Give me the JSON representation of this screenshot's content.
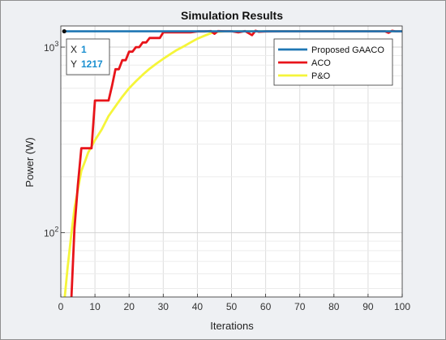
{
  "chart_data": {
    "type": "line",
    "title": "Simulation Results",
    "xlabel": "Iterations",
    "ylabel": "Power (W)",
    "xlim": [
      0,
      100
    ],
    "ylim": [
      45,
      1300
    ],
    "yscale": "log",
    "grid": true,
    "legend_position": "top-right",
    "x_ticks": [
      0,
      10,
      20,
      30,
      40,
      50,
      60,
      70,
      80,
      90,
      100
    ],
    "y_ticks": [
      {
        "value": 100,
        "base": "10",
        "exponent": "2"
      },
      {
        "value": 1000,
        "base": "10",
        "exponent": "3"
      }
    ],
    "series": [
      {
        "name": "Proposed GAACO",
        "color": "#1f77b4",
        "x": [
          1,
          2,
          5,
          10,
          20,
          30,
          40,
          50,
          60,
          70,
          80,
          90,
          100
        ],
        "y": [
          1217,
          1217,
          1217,
          1217,
          1217,
          1217,
          1217,
          1217,
          1217,
          1217,
          1217,
          1217,
          1217
        ]
      },
      {
        "name": "ACO",
        "color": "#e8141a",
        "x": [
          3,
          4,
          5,
          6,
          7,
          8,
          9,
          10,
          11,
          12,
          13,
          14,
          15,
          16,
          17,
          18,
          19,
          20,
          21,
          22,
          23,
          24,
          25,
          26,
          27,
          28,
          29,
          30,
          31,
          32,
          33,
          34,
          35,
          36,
          38,
          40,
          42,
          44,
          45,
          46,
          48,
          50,
          52,
          54,
          56,
          57,
          58,
          60,
          65,
          70,
          75,
          80,
          85,
          90,
          95,
          96,
          97,
          98,
          100
        ],
        "y": [
          40,
          105,
          180,
          285,
          285,
          285,
          285,
          515,
          515,
          515,
          515,
          515,
          620,
          760,
          760,
          850,
          850,
          945,
          945,
          1000,
          1000,
          1060,
          1060,
          1120,
          1120,
          1120,
          1120,
          1200,
          1200,
          1200,
          1200,
          1200,
          1200,
          1200,
          1200,
          1215,
          1215,
          1220,
          1180,
          1220,
          1218,
          1218,
          1200,
          1220,
          1160,
          1225,
          1210,
          1215,
          1217,
          1217,
          1217,
          1217,
          1217,
          1217,
          1217,
          1195,
          1225,
          1217,
          1217
        ]
      },
      {
        "name": "P&O",
        "color": "#f5f53a",
        "x": [
          1,
          2,
          3,
          4,
          5,
          6,
          7,
          8,
          10,
          12,
          14,
          16,
          18,
          20,
          22,
          24,
          26,
          28,
          30,
          32,
          34,
          36,
          38,
          40,
          42,
          44,
          46,
          48,
          50,
          55,
          60,
          65,
          70,
          80,
          90,
          100
        ],
        "y": [
          42,
          65,
          95,
          135,
          170,
          215,
          240,
          270,
          315,
          360,
          425,
          480,
          540,
          600,
          655,
          710,
          765,
          815,
          865,
          915,
          965,
          1010,
          1060,
          1110,
          1150,
          1190,
          1210,
          1217,
          1217,
          1217,
          1217,
          1217,
          1217,
          1217,
          1217,
          1217
        ]
      }
    ]
  },
  "datatip": {
    "x_label": "X",
    "x_value": "1",
    "y_label": "Y",
    "y_value": "1217"
  }
}
